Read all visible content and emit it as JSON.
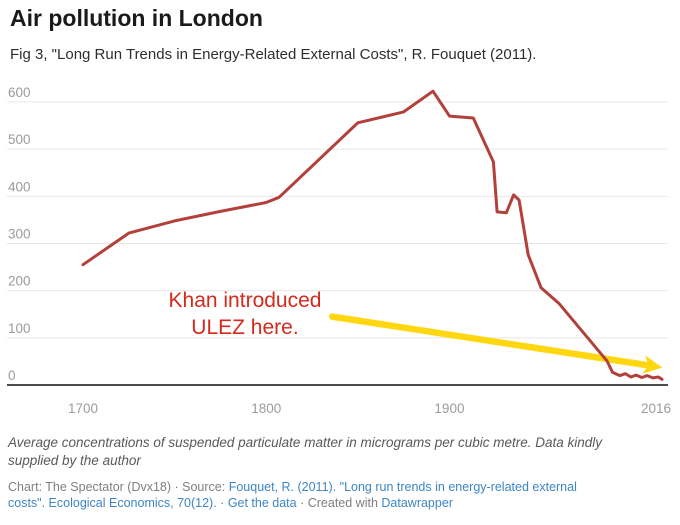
{
  "header": {
    "title": "Air pollution in London",
    "subtitle": "Fig 3, \"Long Run Trends in Energy-Related External Costs\", R. Fouquet (2011)."
  },
  "chart_data": {
    "type": "line",
    "title": "Air pollution in London",
    "xlabel": "",
    "ylabel": "Average concentrations of suspended particulate matter (micrograms per cubic metre)",
    "xlim": [
      1700,
      2016
    ],
    "ylim": [
      0,
      650
    ],
    "grid": true,
    "x_ticks": [
      "1700",
      "1800",
      "1900",
      "2016"
    ],
    "y_ticks": [
      0,
      100,
      200,
      300,
      400,
      500,
      600
    ],
    "colors": {
      "line": "#b2413b",
      "grid": "#e7e7e7",
      "axis": "#4c4c4c",
      "tick_labels": "#9b9b9b"
    },
    "series": [
      {
        "name": "Suspended particulate matter",
        "points": [
          [
            1700,
            255
          ],
          [
            1725,
            322
          ],
          [
            1750,
            348
          ],
          [
            1775,
            368
          ],
          [
            1800,
            387
          ],
          [
            1807,
            398
          ],
          [
            1850,
            556
          ],
          [
            1875,
            579
          ],
          [
            1891,
            623
          ],
          [
            1900,
            570
          ],
          [
            1913,
            566
          ],
          [
            1924,
            473
          ],
          [
            1926,
            367
          ],
          [
            1931,
            365
          ],
          [
            1935,
            403
          ],
          [
            1938,
            392
          ],
          [
            1943,
            276
          ],
          [
            1950,
            206
          ],
          [
            1960,
            172
          ],
          [
            1986,
            51
          ],
          [
            1989,
            27
          ],
          [
            1993,
            20
          ],
          [
            1996,
            24
          ],
          [
            1999,
            17
          ],
          [
            2002,
            21
          ],
          [
            2005,
            16
          ],
          [
            2008,
            20
          ],
          [
            2011,
            15
          ],
          [
            2014,
            17
          ],
          [
            2016,
            12
          ]
        ]
      }
    ],
    "annotation": {
      "line1": "Khan introduced",
      "line2": "ULEZ here.",
      "text_color": "#d42a1e",
      "arrow_color": "#ffd711",
      "arrow_from": [
        1836,
        145
      ],
      "arrow_to": [
        2008,
        42
      ]
    }
  },
  "footer": {
    "note": "Average concentrations of suspended particulate matter in micrograms per cubic metre. Data kindly supplied by the author",
    "link_color": "#3e86c3",
    "credit_line1": [
      {
        "text": "Chart: The Spectator (Dvx18) · Source: ",
        "link": false
      },
      {
        "text": "Fouquet, R. (2011). \"Long run trends in energy-related external",
        "link": true
      }
    ],
    "credit_line2": [
      {
        "text": "costs\". Ecological Economics, 70(12).",
        "link": true
      },
      {
        "text": " · ",
        "link": false
      },
      {
        "text": "Get the data",
        "link": true
      },
      {
        "text": " · Created with ",
        "link": false
      },
      {
        "text": "Datawrapper",
        "link": true
      }
    ]
  }
}
